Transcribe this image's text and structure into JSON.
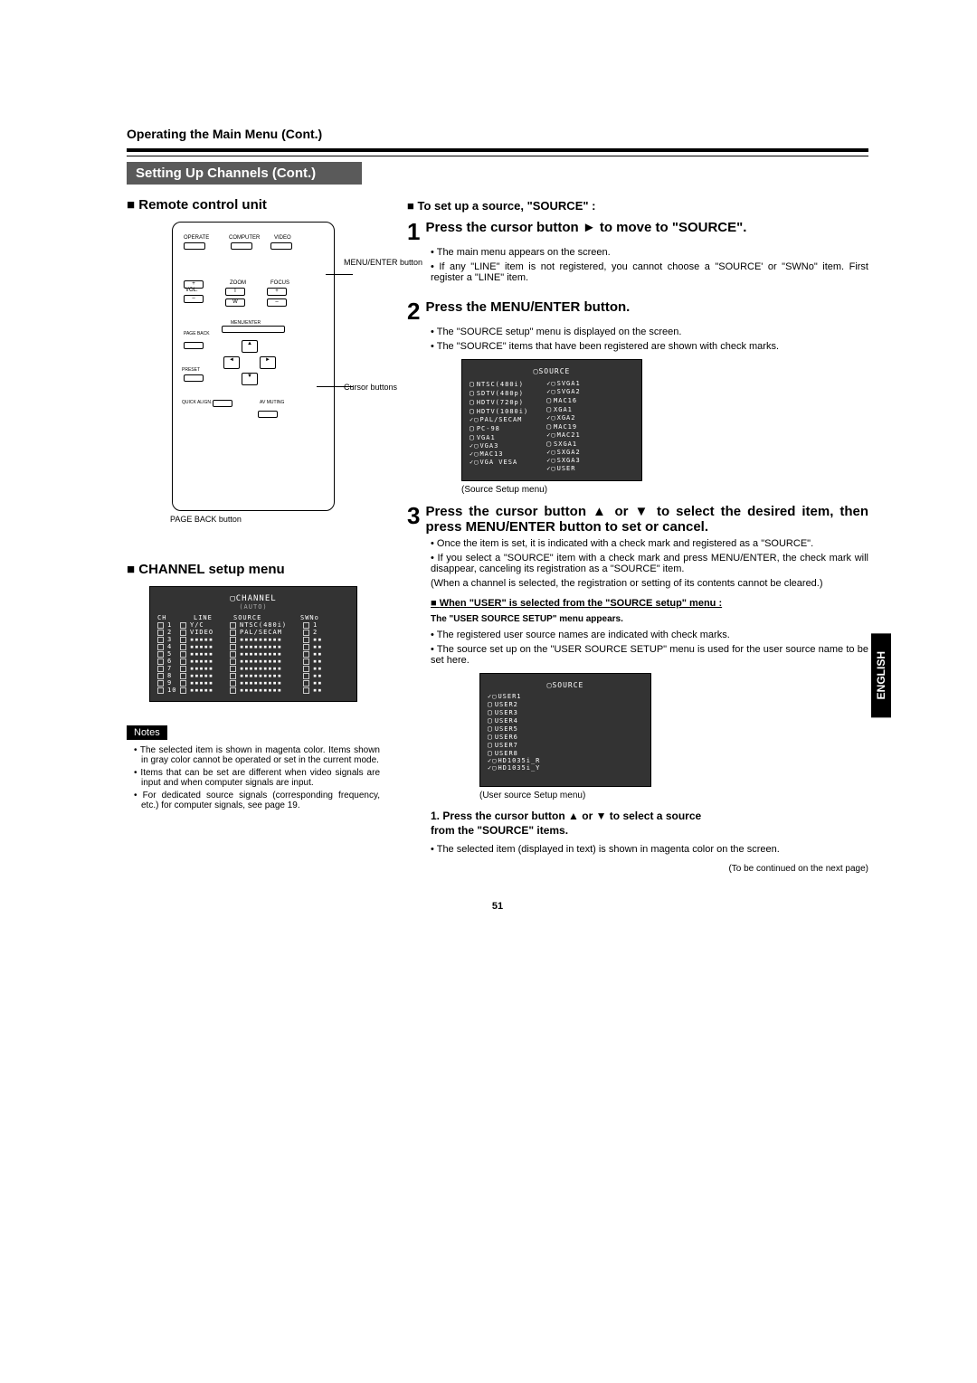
{
  "breadcrumb": "Operating the Main Menu (Cont.)",
  "section_bar": "Setting Up Channels (Cont.)",
  "left": {
    "remote_heading": "Remote control unit",
    "remote_labels": {
      "menu_enter": "MENU/ENTER button",
      "cursor": "Cursor buttons",
      "page_back": "PAGE BACK button",
      "operate": "OPERATE",
      "computer": "COMPUTER",
      "video": "VIDEO",
      "vol": "VOL.",
      "zoom": "ZOOM",
      "focus": "FOCUS",
      "menu": "MENU/ENTER",
      "page": "PAGE BACK",
      "preset": "PRESET",
      "quick": "QUICK ALIGN.",
      "av": "AV MUTING",
      "t": "T",
      "w": "W",
      "plus": "+",
      "minus": "–"
    },
    "channel_heading": "CHANNEL setup menu",
    "channel": {
      "title": "▢CHANNEL",
      "subtitle": "(AUTO)",
      "headers": [
        "CH",
        "LINE",
        "SOURCE",
        "SWNo"
      ],
      "rows": [
        {
          "ch": "1",
          "line": "Y/C",
          "source": "NTSC(480i)",
          "sw": "1"
        },
        {
          "ch": "2",
          "line": "VIDEO",
          "source": "PAL/SECAM",
          "sw": "2"
        },
        {
          "ch": "3",
          "line": "▪▪▪▪▪",
          "source": "▪▪▪▪▪▪▪▪▪",
          "sw": "▪▪"
        },
        {
          "ch": "4",
          "line": "▪▪▪▪▪",
          "source": "▪▪▪▪▪▪▪▪▪",
          "sw": "▪▪"
        },
        {
          "ch": "5",
          "line": "▪▪▪▪▪",
          "source": "▪▪▪▪▪▪▪▪▪",
          "sw": "▪▪"
        },
        {
          "ch": "6",
          "line": "▪▪▪▪▪",
          "source": "▪▪▪▪▪▪▪▪▪",
          "sw": "▪▪"
        },
        {
          "ch": "7",
          "line": "▪▪▪▪▪",
          "source": "▪▪▪▪▪▪▪▪▪",
          "sw": "▪▪"
        },
        {
          "ch": "8",
          "line": "▪▪▪▪▪",
          "source": "▪▪▪▪▪▪▪▪▪",
          "sw": "▪▪"
        },
        {
          "ch": "9",
          "line": "▪▪▪▪▪",
          "source": "▪▪▪▪▪▪▪▪▪",
          "sw": "▪▪"
        },
        {
          "ch": "10",
          "line": "▪▪▪▪▪",
          "source": "▪▪▪▪▪▪▪▪▪",
          "sw": "▪▪"
        }
      ]
    },
    "notes_label": "Notes",
    "notes": [
      "The selected item is shown in magenta color. Items shown in gray color cannot be operated or set in the current mode.",
      "Items that can be set are different when video signals are input and when computer signals are input.",
      "For dedicated source signals (corresponding frequency, etc.) for computer signals, see page 19."
    ]
  },
  "right": {
    "subhead": "To set up a source, \"SOURCE\" :",
    "step1": {
      "num": "1",
      "title": "Press the cursor button ► to move to \"SOURCE\".",
      "b1": "The main menu appears on the screen.",
      "b2": "If any \"LINE\" item is not registered, you cannot choose a \"SOURCE' or \"SWNo\" item. First register a \"LINE\" item."
    },
    "step2": {
      "num": "2",
      "title": "Press the MENU/ENTER button.",
      "b1": "The \"SOURCE setup\" menu is displayed on the screen.",
      "b2": "The \"SOURCE\" items that have been registered are shown with check marks."
    },
    "source_menu": {
      "title": "▢SOURCE",
      "caption": "(Source Setup menu)",
      "left_col": [
        "NTSC(480i)",
        "SDTV(480p)",
        "HDTV(720p)",
        "HDTV(1080i)",
        "PAL/SECAM",
        "PC-98",
        "VGA1",
        "VGA3",
        "MAC13",
        "VGA VESA"
      ],
      "left_chk": [
        false,
        false,
        false,
        false,
        true,
        false,
        false,
        true,
        true,
        true
      ],
      "right_col": [
        "SVGA1",
        "SVGA2",
        "MAC16",
        "XGA1",
        "XGA2",
        "MAC19",
        "MAC21",
        "SXGA1",
        "SXGA2",
        "SXGA3",
        "USER"
      ],
      "right_chk": [
        true,
        true,
        false,
        false,
        true,
        false,
        true,
        false,
        true,
        true,
        true
      ]
    },
    "step3": {
      "num": "3",
      "title": "Press the cursor button ▲ or ▼ to select the desired item, then press MENU/ENTER button to set or cancel.",
      "b1": "Once the item is set, it is indicated with a check mark and registered as a \"SOURCE\".",
      "b2": "If you select a \"SOURCE\" item with a check mark and press MENU/ENTER, the check mark will disappear, canceling its registration as a \"SOURCE\" item.",
      "b2b": "(When a channel is selected, the registration or setting of its contents cannot be cleared.)"
    },
    "user_head1": "When \"USER\" is selected from the \"SOURCE setup\" menu :",
    "user_head2": "The \"USER SOURCE SETUP\" menu appears.",
    "user_b1": "The registered user source names are indicated with check marks.",
    "user_b2": "The source set up on the \"USER SOURCE SETUP\" menu is used for the user source name to be set here.",
    "user_menu": {
      "title": "▢SOURCE",
      "caption": "(User source Setup menu)",
      "items": [
        "USER1",
        "USER2",
        "USER3",
        "USER4",
        "USER5",
        "USER6",
        "USER7",
        "USER8",
        "HD1035i_R",
        "HD1035i_Y"
      ],
      "chk": [
        true,
        false,
        false,
        false,
        false,
        false,
        false,
        false,
        true,
        true
      ]
    },
    "numstep": "1.  Press the cursor button ▲ or ▼ to select a source",
    "numstep2": "from the \"SOURCE\" items.",
    "numstep_b": "The selected item (displayed in text) is shown in magenta color on the screen.",
    "cont": "(To be continued on the next page)"
  },
  "english_tab": "ENGLISH",
  "page_num": "51"
}
